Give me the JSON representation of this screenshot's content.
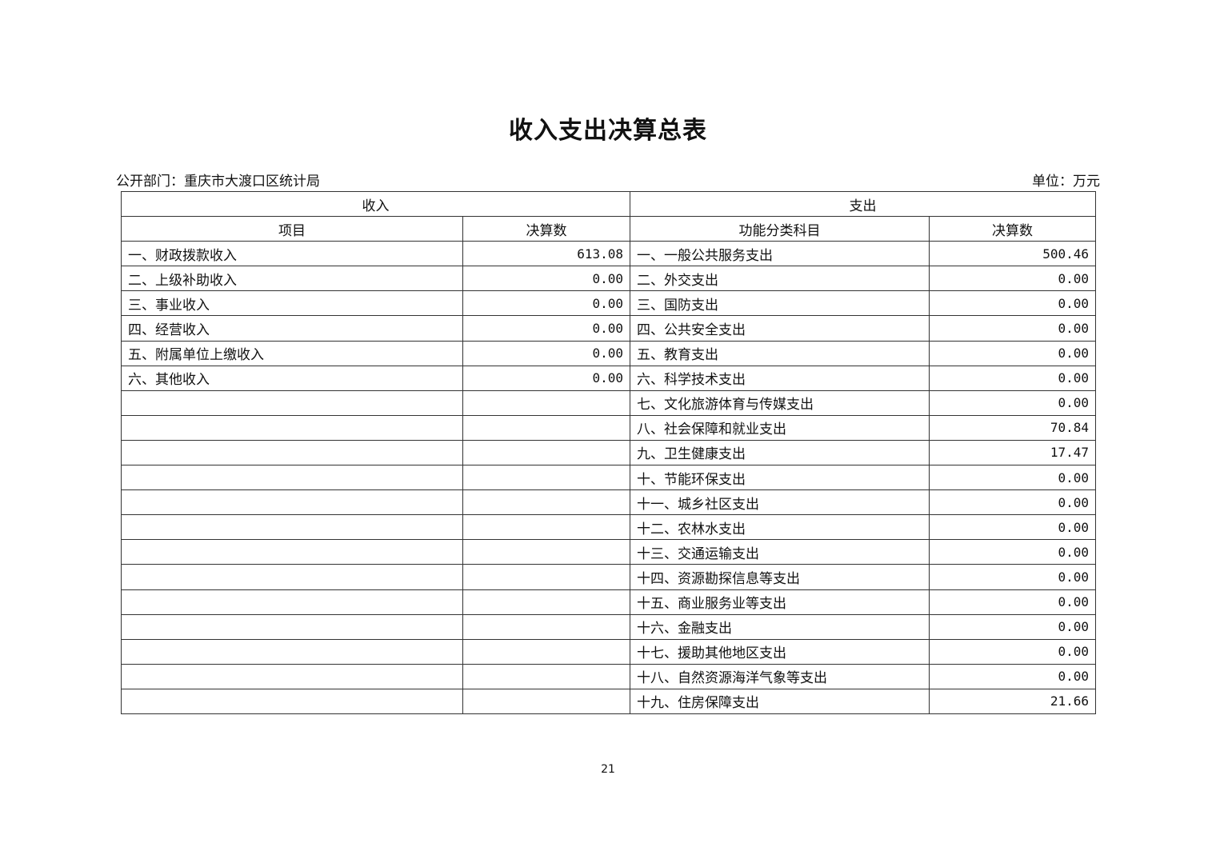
{
  "title": "收入支出决算总表",
  "department": "公开部门：重庆市大渡口区统计局",
  "unit": "单位：万元",
  "table": {
    "income_header": "收入",
    "expense_header": "支出",
    "income_item_col": "项目",
    "income_amount_col": "决算数",
    "expense_item_col": "功能分类科目",
    "expense_amount_col": "决算数",
    "rows": [
      {
        "income_item": "一、财政拨款收入",
        "income_amount": "613.08",
        "expense_item": "一、一般公共服务支出",
        "expense_amount": "500.46"
      },
      {
        "income_item": "二、上级补助收入",
        "income_amount": "0.00",
        "expense_item": "二、外交支出",
        "expense_amount": "0.00"
      },
      {
        "income_item": "三、事业收入",
        "income_amount": "0.00",
        "expense_item": "三、国防支出",
        "expense_amount": "0.00"
      },
      {
        "income_item": "四、经营收入",
        "income_amount": "0.00",
        "expense_item": "四、公共安全支出",
        "expense_amount": "0.00"
      },
      {
        "income_item": "五、附属单位上缴收入",
        "income_amount": "0.00",
        "expense_item": "五、教育支出",
        "expense_amount": "0.00"
      },
      {
        "income_item": "六、其他收入",
        "income_amount": "0.00",
        "expense_item": "六、科学技术支出",
        "expense_amount": "0.00"
      },
      {
        "income_item": "",
        "income_amount": "",
        "expense_item": "七、文化旅游体育与传媒支出",
        "expense_amount": "0.00"
      },
      {
        "income_item": "",
        "income_amount": "",
        "expense_item": "八、社会保障和就业支出",
        "expense_amount": "70.84"
      },
      {
        "income_item": "",
        "income_amount": "",
        "expense_item": "九、卫生健康支出",
        "expense_amount": "17.47"
      },
      {
        "income_item": "",
        "income_amount": "",
        "expense_item": "十、节能环保支出",
        "expense_amount": "0.00"
      },
      {
        "income_item": "",
        "income_amount": "",
        "expense_item": "十一、城乡社区支出",
        "expense_amount": "0.00"
      },
      {
        "income_item": "",
        "income_amount": "",
        "expense_item": "十二、农林水支出",
        "expense_amount": "0.00"
      },
      {
        "income_item": "",
        "income_amount": "",
        "expense_item": "十三、交通运输支出",
        "expense_amount": "0.00"
      },
      {
        "income_item": "",
        "income_amount": "",
        "expense_item": "十四、资源勘探信息等支出",
        "expense_amount": "0.00"
      },
      {
        "income_item": "",
        "income_amount": "",
        "expense_item": "十五、商业服务业等支出",
        "expense_amount": "0.00"
      },
      {
        "income_item": "",
        "income_amount": "",
        "expense_item": "十六、金融支出",
        "expense_amount": "0.00"
      },
      {
        "income_item": "",
        "income_amount": "",
        "expense_item": "十七、援助其他地区支出",
        "expense_amount": "0.00"
      },
      {
        "income_item": "",
        "income_amount": "",
        "expense_item": "十八、自然资源海洋气象等支出",
        "expense_amount": "0.00"
      },
      {
        "income_item": "",
        "income_amount": "",
        "expense_item": "十九、住房保障支出",
        "expense_amount": "21.66"
      }
    ]
  },
  "page_number": "21"
}
